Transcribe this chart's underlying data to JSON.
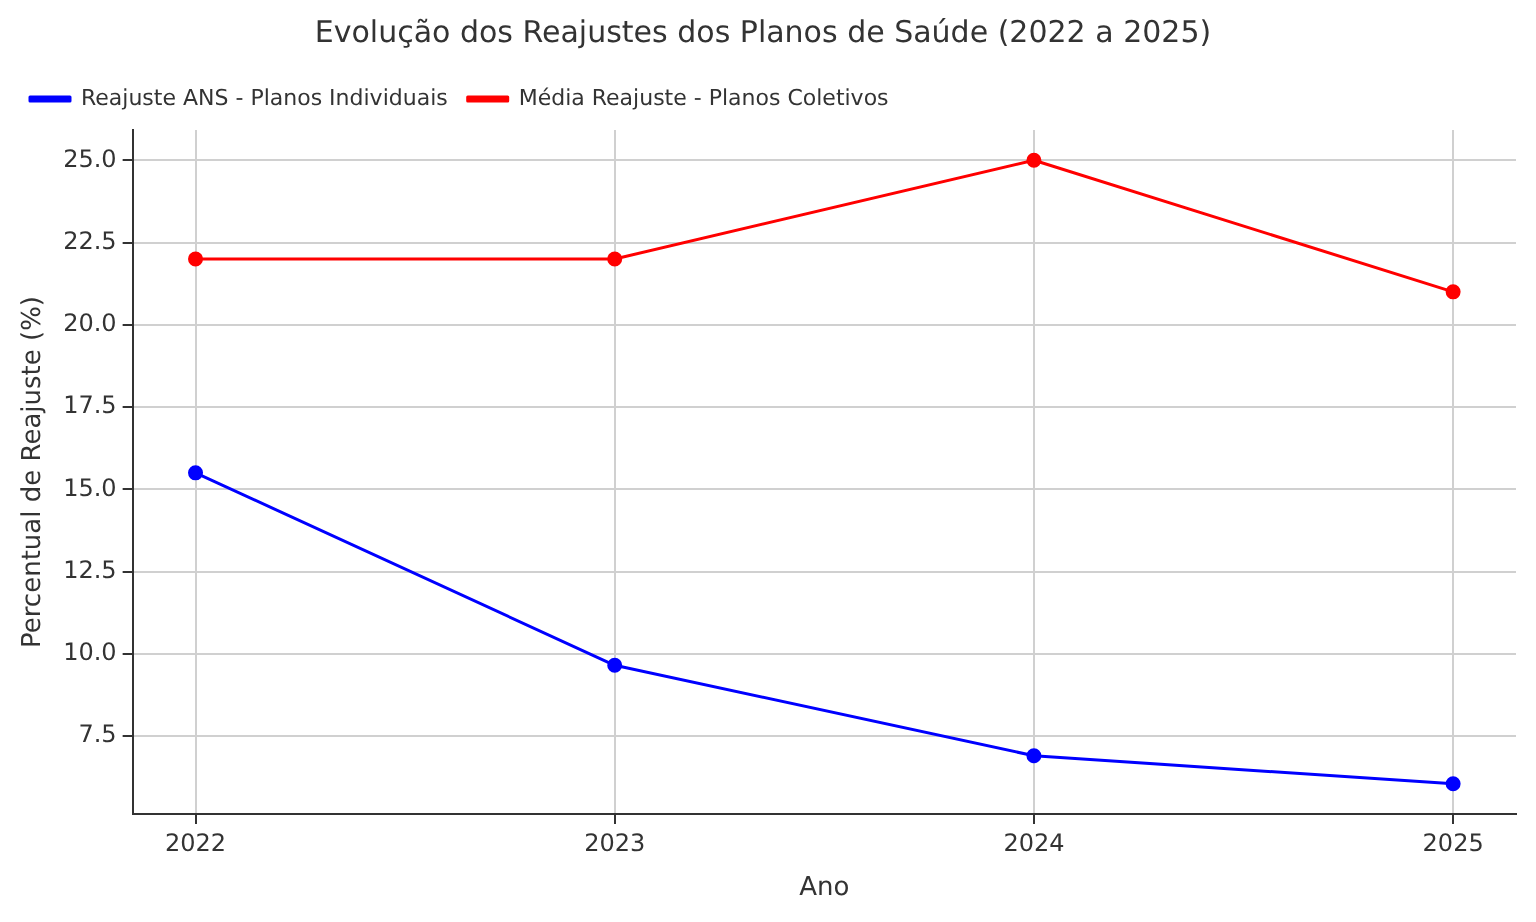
{
  "chart_data": {
    "type": "line",
    "title": "Evolução dos Reajustes dos Planos de Saúde (2022 a 2025)",
    "xlabel": "Ano",
    "ylabel": "Percentual de Reajuste (%)",
    "x": [
      2022,
      2023,
      2024,
      2025
    ],
    "series": [
      {
        "name": "Reajuste ANS - Planos Individuais",
        "color": "#0000ff",
        "values": [
          15.5,
          9.65,
          6.9,
          6.05
        ]
      },
      {
        "name": "Média Reajuste - Planos Coletivos",
        "color": "#ff0000",
        "values": [
          22,
          22,
          25,
          21
        ]
      }
    ],
    "xlim": [
      2021.85,
      2025.15
    ],
    "xticks": [
      2022,
      2023,
      2024,
      2025
    ],
    "ylim": [
      5.13,
      25.92
    ],
    "yticks": [
      {
        "value": 7.5,
        "label": "7.5"
      },
      {
        "value": 10,
        "label": "10.0"
      },
      {
        "value": 12.5,
        "label": "12.5"
      },
      {
        "value": 15,
        "label": "15.0"
      },
      {
        "value": 17.5,
        "label": "17.5"
      },
      {
        "value": 20,
        "label": "20.0"
      },
      {
        "value": 22.5,
        "label": "22.5"
      },
      {
        "value": 25,
        "label": "25.0"
      }
    ],
    "grid": true,
    "legend": "top left",
    "marker": "circle",
    "line_style": "solid"
  }
}
